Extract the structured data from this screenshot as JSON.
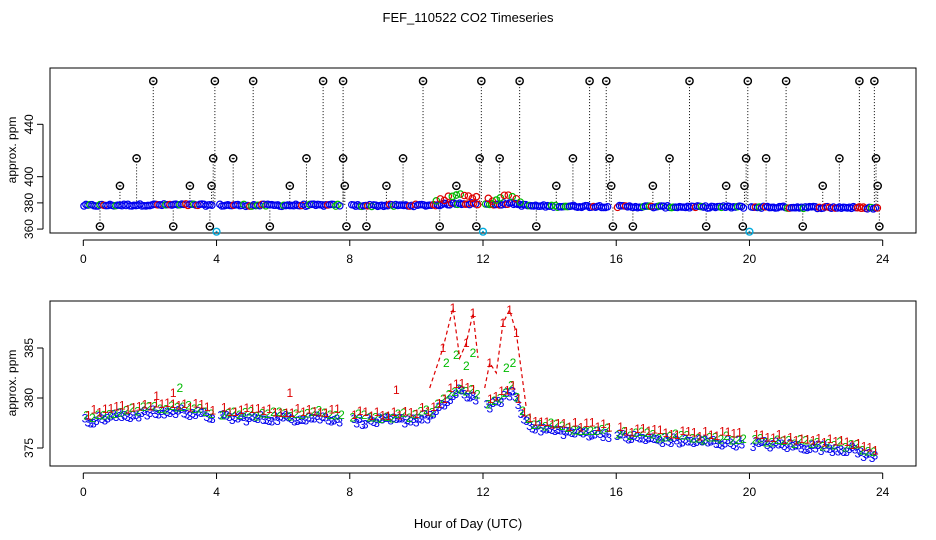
{
  "title": "FEF_110522  CO2 Timeseries",
  "xlabel": "Hour of Day (UTC)",
  "colors": {
    "series1": "#dd0000",
    "series2": "#00bb00",
    "series3": "#0000ee",
    "spike": "#000000",
    "low": "#00aadd",
    "axis": "#000000"
  },
  "chart_data": [
    {
      "type": "scatter",
      "name": "top-panel-overview",
      "ylabel": "approx. ppm",
      "xlim": [
        -1,
        25
      ],
      "ylim": [
        357,
        483
      ],
      "xticks": [
        "0",
        "4",
        "8",
        "12",
        "16",
        "20",
        "24"
      ],
      "xtick_values": [
        0,
        4,
        8,
        12,
        16,
        20,
        24
      ],
      "yticks": [
        "360",
        "380",
        "400",
        "440"
      ],
      "ytick_values": [
        360,
        380,
        400,
        440
      ],
      "baseline": 360,
      "series_note": "dense points near 378 ppm (series 1, 2, 3); spikes shown as black circles with dotted drop lines",
      "spikes": [
        {
          "x": 0.5,
          "y": 362
        },
        {
          "x": 1.1,
          "y": 393
        },
        {
          "x": 1.6,
          "y": 414
        },
        {
          "x": 2.1,
          "y": 473
        },
        {
          "x": 2.7,
          "y": 362
        },
        {
          "x": 3.2,
          "y": 393
        },
        {
          "x": 3.8,
          "y": 362
        },
        {
          "x": 3.85,
          "y": 393
        },
        {
          "x": 3.9,
          "y": 414
        },
        {
          "x": 3.95,
          "y": 473
        },
        {
          "x": 4.5,
          "y": 414
        },
        {
          "x": 5.1,
          "y": 473
        },
        {
          "x": 5.6,
          "y": 362
        },
        {
          "x": 6.2,
          "y": 393
        },
        {
          "x": 6.7,
          "y": 414
        },
        {
          "x": 7.2,
          "y": 473
        },
        {
          "x": 7.8,
          "y": 473
        },
        {
          "x": 7.8,
          "y": 414
        },
        {
          "x": 7.85,
          "y": 393
        },
        {
          "x": 7.9,
          "y": 362
        },
        {
          "x": 8.5,
          "y": 362
        },
        {
          "x": 9.1,
          "y": 393
        },
        {
          "x": 9.6,
          "y": 414
        },
        {
          "x": 10.2,
          "y": 473
        },
        {
          "x": 10.7,
          "y": 362
        },
        {
          "x": 11.2,
          "y": 393
        },
        {
          "x": 11.8,
          "y": 362
        },
        {
          "x": 11.9,
          "y": 414
        },
        {
          "x": 11.95,
          "y": 473
        },
        {
          "x": 12.5,
          "y": 414
        },
        {
          "x": 13.1,
          "y": 473
        },
        {
          "x": 13.6,
          "y": 362
        },
        {
          "x": 14.2,
          "y": 393
        },
        {
          "x": 14.7,
          "y": 414
        },
        {
          "x": 15.2,
          "y": 473
        },
        {
          "x": 15.7,
          "y": 473
        },
        {
          "x": 15.8,
          "y": 414
        },
        {
          "x": 15.85,
          "y": 393
        },
        {
          "x": 15.9,
          "y": 362
        },
        {
          "x": 16.5,
          "y": 362
        },
        {
          "x": 17.1,
          "y": 393
        },
        {
          "x": 17.6,
          "y": 414
        },
        {
          "x": 18.2,
          "y": 473
        },
        {
          "x": 18.7,
          "y": 362
        },
        {
          "x": 19.3,
          "y": 393
        },
        {
          "x": 19.8,
          "y": 362
        },
        {
          "x": 19.85,
          "y": 393
        },
        {
          "x": 19.9,
          "y": 414
        },
        {
          "x": 19.95,
          "y": 473
        },
        {
          "x": 20.5,
          "y": 414
        },
        {
          "x": 21.1,
          "y": 473
        },
        {
          "x": 21.6,
          "y": 362
        },
        {
          "x": 22.2,
          "y": 393
        },
        {
          "x": 22.7,
          "y": 414
        },
        {
          "x": 23.3,
          "y": 473
        },
        {
          "x": 23.75,
          "y": 473
        },
        {
          "x": 23.8,
          "y": 414
        },
        {
          "x": 23.85,
          "y": 393
        },
        {
          "x": 23.9,
          "y": 362
        }
      ],
      "lows": [
        {
          "x": 4.0,
          "y": 358
        },
        {
          "x": 12.0,
          "y": 358
        },
        {
          "x": 20.0,
          "y": 358
        }
      ]
    },
    {
      "type": "scatter",
      "name": "bottom-panel-detail",
      "ylabel": "approx. ppm",
      "xlim": [
        -1,
        25
      ],
      "ylim": [
        373.2,
        389.7
      ],
      "xticks": [
        "0",
        "4",
        "8",
        "12",
        "16",
        "20",
        "24"
      ],
      "xtick_values": [
        0,
        4,
        8,
        12,
        16,
        20,
        24
      ],
      "yticks": [
        "375",
        "380",
        "385"
      ],
      "ytick_values": [
        375,
        380,
        385
      ],
      "series": [
        {
          "name": "1",
          "marker": "1",
          "color": "red"
        },
        {
          "name": "2",
          "marker": "2",
          "color": "green"
        },
        {
          "name": "3",
          "marker": "3",
          "color": "blue"
        }
      ],
      "gaps": [
        [
          3.9,
          4.1
        ],
        [
          7.75,
          8.05
        ],
        [
          11.85,
          12.05
        ],
        [
          15.8,
          16.0
        ],
        [
          19.85,
          20.05
        ],
        [
          23.85,
          25
        ]
      ],
      "profile_x": [
        0,
        1,
        2,
        3,
        3.8,
        4.1,
        5,
        6,
        7,
        7.75,
        8.05,
        9,
        10,
        10.5,
        11,
        11.3,
        11.6,
        11.85,
        12.05,
        12.3,
        12.6,
        12.9,
        13.2,
        13.6,
        14.5,
        15.5,
        15.8,
        16.0,
        17,
        18,
        19,
        19.85,
        20.05,
        21,
        22,
        23,
        23.85
      ],
      "profile_y": [
        378.0,
        378.5,
        378.8,
        379.0,
        378.5,
        378.4,
        378.3,
        378.3,
        378.4,
        378.2,
        378.0,
        378.0,
        378.2,
        378.6,
        380.2,
        381.0,
        380.5,
        380.4,
        379.5,
        379.5,
        380.3,
        381.0,
        378.3,
        377.3,
        376.9,
        376.8,
        376.7,
        376.5,
        376.2,
        376.0,
        375.9,
        375.8,
        375.8,
        375.6,
        375.4,
        375.2,
        374.3
      ],
      "peaks_series1": [
        {
          "x": 2.2,
          "y": 380.2
        },
        {
          "x": 2.7,
          "y": 380.5
        },
        {
          "x": 6.2,
          "y": 380.5
        },
        {
          "x": 9.4,
          "y": 380.8
        },
        {
          "x": 10.8,
          "y": 385.0
        },
        {
          "x": 11.1,
          "y": 389.0
        },
        {
          "x": 11.5,
          "y": 385.5
        },
        {
          "x": 11.7,
          "y": 388.5
        },
        {
          "x": 12.2,
          "y": 383.5
        },
        {
          "x": 12.6,
          "y": 387.5
        },
        {
          "x": 12.8,
          "y": 388.8
        },
        {
          "x": 13.0,
          "y": 386.5
        }
      ],
      "peaks_series2": [
        {
          "x": 2.9,
          "y": 381.0
        },
        {
          "x": 10.9,
          "y": 383.5
        },
        {
          "x": 11.2,
          "y": 384.3
        },
        {
          "x": 11.5,
          "y": 383.2
        },
        {
          "x": 11.7,
          "y": 384.5
        },
        {
          "x": 12.7,
          "y": 383.0
        },
        {
          "x": 12.9,
          "y": 383.5
        }
      ]
    }
  ]
}
